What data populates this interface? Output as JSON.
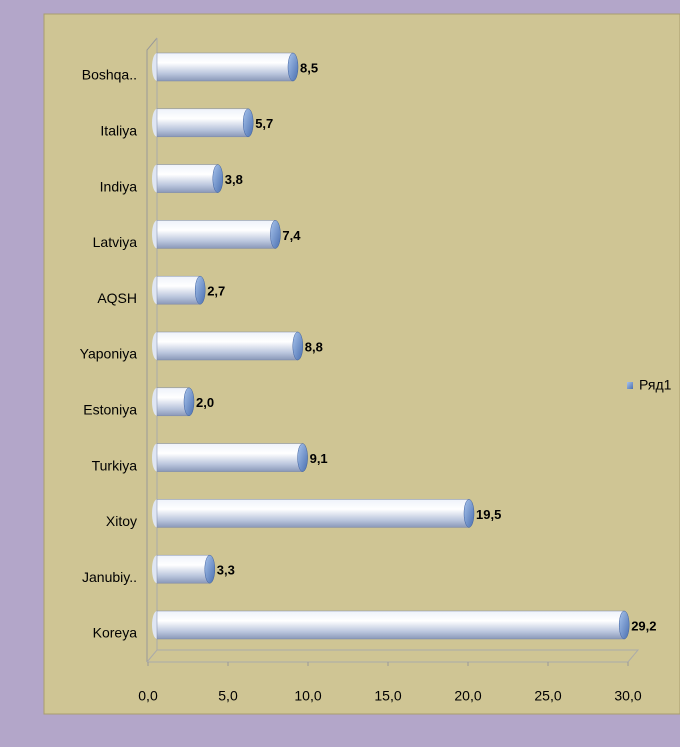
{
  "chart_data": {
    "type": "bar",
    "orientation": "horizontal",
    "categories": [
      "Boshqa..",
      "Italiya",
      "Indiya",
      "Latviya",
      "AQSH",
      "Yaponiya",
      "Estoniya",
      "Turkiya",
      "Xitoy",
      "Janubiy..",
      "Koreya"
    ],
    "series": [
      {
        "name": "Ряд1",
        "color": "#c9d8f0",
        "values": [
          8.5,
          5.7,
          3.8,
          7.4,
          2.7,
          8.8,
          2.0,
          9.1,
          19.5,
          3.3,
          29.2
        ],
        "value_labels": [
          "8,5",
          "5,7",
          "3,8",
          "7,4",
          "2,7",
          "8,8",
          "2,0",
          "9,1",
          "19,5",
          "3,3",
          "29,2"
        ]
      }
    ],
    "xlim": [
      0,
      30
    ],
    "xticks": [
      {
        "value": 0,
        "label": "0,0"
      },
      {
        "value": 5,
        "label": "5,0"
      },
      {
        "value": 10,
        "label": "10,0"
      },
      {
        "value": 15,
        "label": "15,0"
      },
      {
        "value": 20,
        "label": "20,0"
      },
      {
        "value": 25,
        "label": "25,0"
      },
      {
        "value": 30,
        "label": "30,0"
      }
    ],
    "legend": "right"
  }
}
